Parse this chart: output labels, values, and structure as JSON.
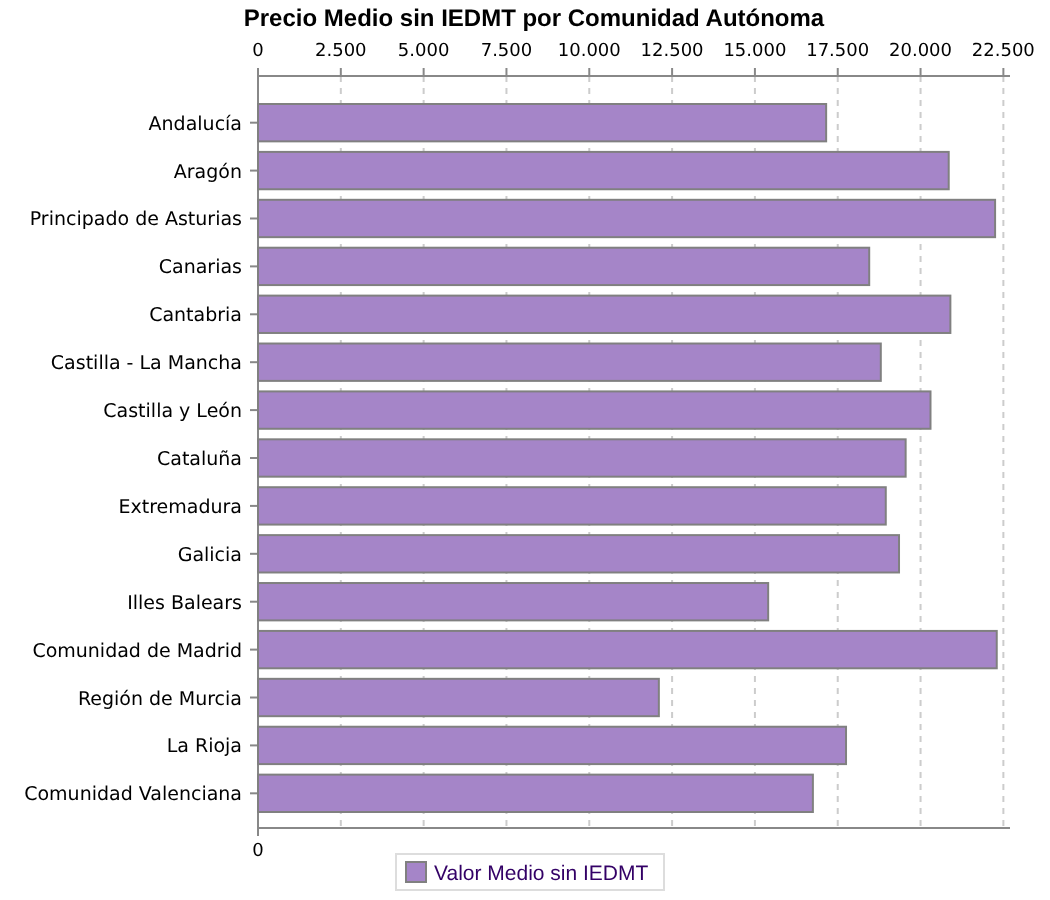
{
  "chart_data": {
    "type": "bar",
    "orientation": "horizontal",
    "title": "Precio Medio sin IEDMT por Comunidad Autónoma",
    "categories": [
      "Andalucía",
      "Aragón",
      "Principado de Asturias",
      "Canarias",
      "Cantabria",
      "Castilla - La Mancha",
      "Castilla y León",
      "Cataluña",
      "Extremadura",
      "Galicia",
      "Illes Balears",
      "Comunidad de Madrid",
      "Región de Murcia",
      "La Rioja",
      "Comunidad Valenciana"
    ],
    "series": [
      {
        "name": "Valor Medio sin IEDMT",
        "color": "#a585c8",
        "values": [
          17150,
          20850,
          22250,
          18450,
          20900,
          18800,
          20300,
          19550,
          18950,
          19350,
          15400,
          22300,
          12100,
          17750,
          16750
        ]
      }
    ],
    "annotations": [
      "0"
    ],
    "xlim": [
      0,
      22700
    ],
    "xticks": [
      0,
      {
        "value": 2500,
        "label": "2.500"
      },
      {
        "value": 5000,
        "label": "5.000"
      },
      {
        "value": 7500,
        "label": "7.500"
      },
      {
        "value": 10000,
        "label": "10.000"
      },
      {
        "value": 12500,
        "label": "12.500"
      },
      {
        "value": 15000,
        "label": "15.000"
      },
      {
        "value": 17500,
        "label": "17.500"
      },
      {
        "value": 20000,
        "label": "20.000"
      },
      {
        "value": 22500,
        "label": "22.500"
      }
    ],
    "grid": "x",
    "legend": "bottom"
  }
}
